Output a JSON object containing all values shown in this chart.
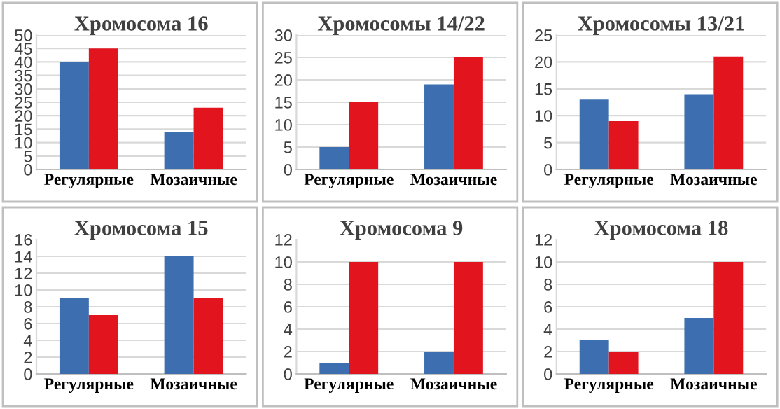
{
  "chart_data": [
    {
      "type": "bar",
      "title": "Хромосома 16",
      "categories": [
        "Регулярные",
        "Мозаичные"
      ],
      "series": [
        {
          "color": "#3c6eb0",
          "values": [
            40,
            14
          ]
        },
        {
          "color": "#e2141e",
          "values": [
            45,
            23
          ]
        }
      ],
      "ylim": [
        0,
        50
      ],
      "yticks": [
        0,
        5,
        10,
        15,
        20,
        25,
        30,
        35,
        40,
        45,
        50
      ],
      "grid": "y"
    },
    {
      "type": "bar",
      "title": "Хромосомы 14/22",
      "categories": [
        "Регулярные",
        "Мозаичные"
      ],
      "series": [
        {
          "color": "#3c6eb0",
          "values": [
            5,
            19
          ]
        },
        {
          "color": "#e2141e",
          "values": [
            15,
            25
          ]
        }
      ],
      "ylim": [
        0,
        30
      ],
      "yticks": [
        0,
        5,
        10,
        15,
        20,
        25,
        30
      ],
      "grid": "y"
    },
    {
      "type": "bar",
      "title": "Хромосомы 13/21",
      "categories": [
        "Регулярные",
        "Мозаичные"
      ],
      "series": [
        {
          "color": "#3c6eb0",
          "values": [
            13,
            14
          ]
        },
        {
          "color": "#e2141e",
          "values": [
            9,
            21
          ]
        }
      ],
      "ylim": [
        0,
        25
      ],
      "yticks": [
        0,
        5,
        10,
        15,
        20,
        25
      ],
      "grid": "y"
    },
    {
      "type": "bar",
      "title": "Хромосома 15",
      "categories": [
        "Регулярные",
        "Мозаичные"
      ],
      "series": [
        {
          "color": "#3c6eb0",
          "values": [
            9,
            14
          ]
        },
        {
          "color": "#e2141e",
          "values": [
            7,
            9
          ]
        }
      ],
      "ylim": [
        0,
        16
      ],
      "yticks": [
        0,
        2,
        4,
        6,
        8,
        10,
        12,
        14,
        16
      ],
      "grid": "y"
    },
    {
      "type": "bar",
      "title": "Хромосома 9",
      "categories": [
        "Регулярные",
        "Мозаичные"
      ],
      "series": [
        {
          "color": "#3c6eb0",
          "values": [
            1,
            2
          ]
        },
        {
          "color": "#e2141e",
          "values": [
            10,
            10
          ]
        }
      ],
      "ylim": [
        0,
        12
      ],
      "yticks": [
        0,
        2,
        4,
        6,
        8,
        10,
        12
      ],
      "grid": "y"
    },
    {
      "type": "bar",
      "title": "Хромосома 18",
      "categories": [
        "Регулярные",
        "Мозаичные"
      ],
      "series": [
        {
          "color": "#3c6eb0",
          "values": [
            3,
            5
          ]
        },
        {
          "color": "#e2141e",
          "values": [
            2,
            10
          ]
        }
      ],
      "ylim": [
        0,
        12
      ],
      "yticks": [
        0,
        2,
        4,
        6,
        8,
        10,
        12
      ],
      "grid": "y"
    }
  ]
}
